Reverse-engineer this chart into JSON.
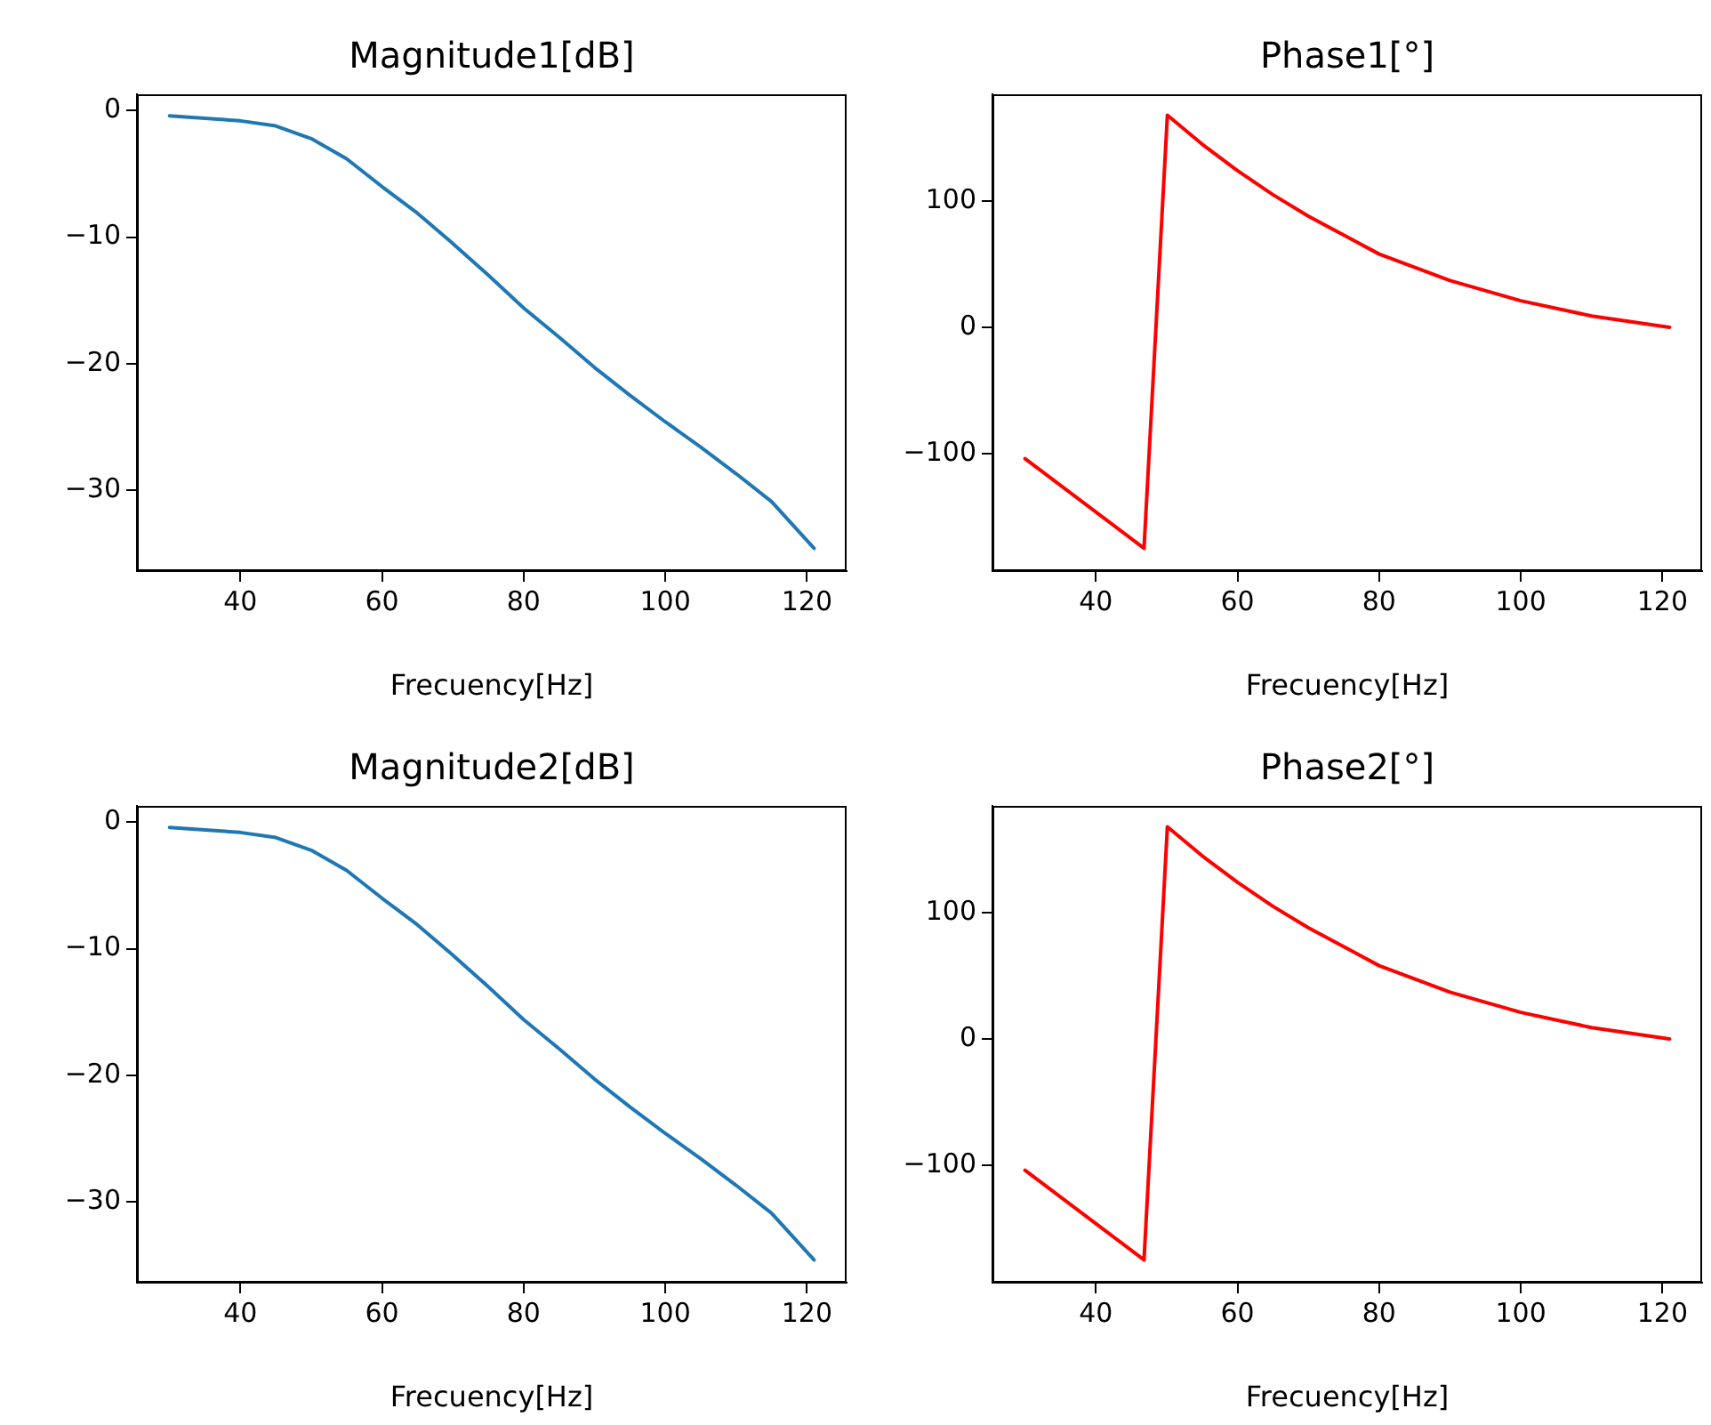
{
  "chart_data": [
    {
      "type": "line",
      "title": "Magnitude1[dB]",
      "xlabel": "Frecuency[Hz]",
      "x": [
        30,
        40,
        45,
        50,
        55,
        60,
        65,
        70,
        75,
        80,
        85,
        90,
        95,
        100,
        105,
        110,
        115,
        121
      ],
      "series": [
        {
          "color": "#1f77b4",
          "values": [
            -0.4,
            -0.8,
            -1.2,
            -2.2,
            -3.8,
            -6.0,
            -8.1,
            -10.5,
            -13.0,
            -15.6,
            -17.9,
            -20.3,
            -22.5,
            -24.6,
            -26.6,
            -28.7,
            -30.9,
            -34.6
          ]
        }
      ],
      "xlim": [
        25.4,
        125.6
      ],
      "ylim": [
        -36.4,
        1.3
      ],
      "xticks": [
        40,
        60,
        80,
        100,
        120
      ],
      "yticks": [
        0,
        -10,
        -20,
        -30
      ]
    },
    {
      "type": "line",
      "title": "Phase1[°]",
      "xlabel": "Frecuency[Hz]",
      "x": [
        30,
        46.8,
        50.1,
        55,
        60,
        65,
        70,
        80,
        90,
        100,
        110,
        121
      ],
      "series": [
        {
          "color": "#ff0000",
          "values": [
            -104,
            -175,
            168,
            145,
            124,
            105,
            88,
            58,
            37,
            21,
            9,
            0
          ]
        }
      ],
      "xlim": [
        25.4,
        125.6
      ],
      "ylim": [
        -193,
        184.5
      ],
      "xticks": [
        40,
        60,
        80,
        100,
        120
      ],
      "yticks": [
        100,
        0,
        -100
      ]
    },
    {
      "type": "line",
      "title": "Magnitude2[dB]",
      "xlabel": "Frecuency[Hz]",
      "x": [
        30,
        40,
        45,
        50,
        55,
        60,
        65,
        70,
        75,
        80,
        85,
        90,
        95,
        100,
        105,
        110,
        115,
        121
      ],
      "series": [
        {
          "color": "#1f77b4",
          "values": [
            -0.4,
            -0.8,
            -1.2,
            -2.2,
            -3.8,
            -6.0,
            -8.1,
            -10.5,
            -13.0,
            -15.6,
            -17.9,
            -20.3,
            -22.5,
            -24.6,
            -26.6,
            -28.7,
            -30.9,
            -34.6
          ]
        }
      ],
      "xlim": [
        25.4,
        125.6
      ],
      "ylim": [
        -36.4,
        1.3
      ],
      "xticks": [
        40,
        60,
        80,
        100,
        120
      ],
      "yticks": [
        0,
        -10,
        -20,
        -30
      ]
    },
    {
      "type": "line",
      "title": "Phase2[°]",
      "xlabel": "Frecuency[Hz]",
      "x": [
        30,
        46.8,
        50.1,
        55,
        60,
        65,
        70,
        80,
        90,
        100,
        110,
        121
      ],
      "series": [
        {
          "color": "#ff0000",
          "values": [
            -104,
            -175,
            168,
            145,
            124,
            105,
            88,
            58,
            37,
            21,
            9,
            0
          ]
        }
      ],
      "xlim": [
        25.4,
        125.6
      ],
      "ylim": [
        -193,
        184.5
      ],
      "xticks": [
        40,
        60,
        80,
        100,
        120
      ],
      "yticks": [
        100,
        0,
        -100
      ]
    }
  ]
}
